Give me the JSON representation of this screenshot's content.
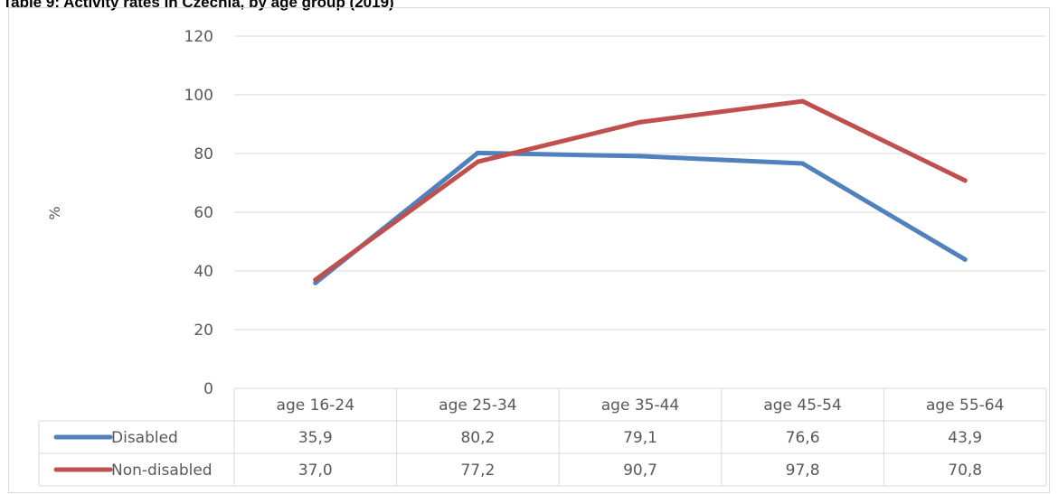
{
  "title": "Table 9: Activity rates in Czechia, by age group (2019)",
  "chart_data": {
    "type": "line",
    "title": "Table 9: Activity rates in Czechia, by age group (2019)",
    "ylabel": "%",
    "xlabel": "",
    "ylim": [
      0,
      120
    ],
    "yticks": [
      0,
      20,
      40,
      60,
      80,
      100,
      120
    ],
    "grid": true,
    "legend": "data-table",
    "categories": [
      "age 16-24",
      "age 25-34",
      "age 35-44",
      "age 45-54",
      "age 55-64"
    ],
    "series": [
      {
        "name": "Disabled",
        "color": "#4f81bd",
        "values": [
          35.9,
          80.2,
          79.1,
          76.6,
          43.9
        ],
        "labels": [
          "35,9",
          "80,2",
          "79,1",
          "76,6",
          "43,9"
        ]
      },
      {
        "name": "Non-disabled",
        "color": "#c0504d",
        "values": [
          37.0,
          77.2,
          90.7,
          97.8,
          70.8
        ],
        "labels": [
          "37,0",
          "77,2",
          "90,7",
          "97,8",
          "70,8"
        ]
      }
    ]
  }
}
